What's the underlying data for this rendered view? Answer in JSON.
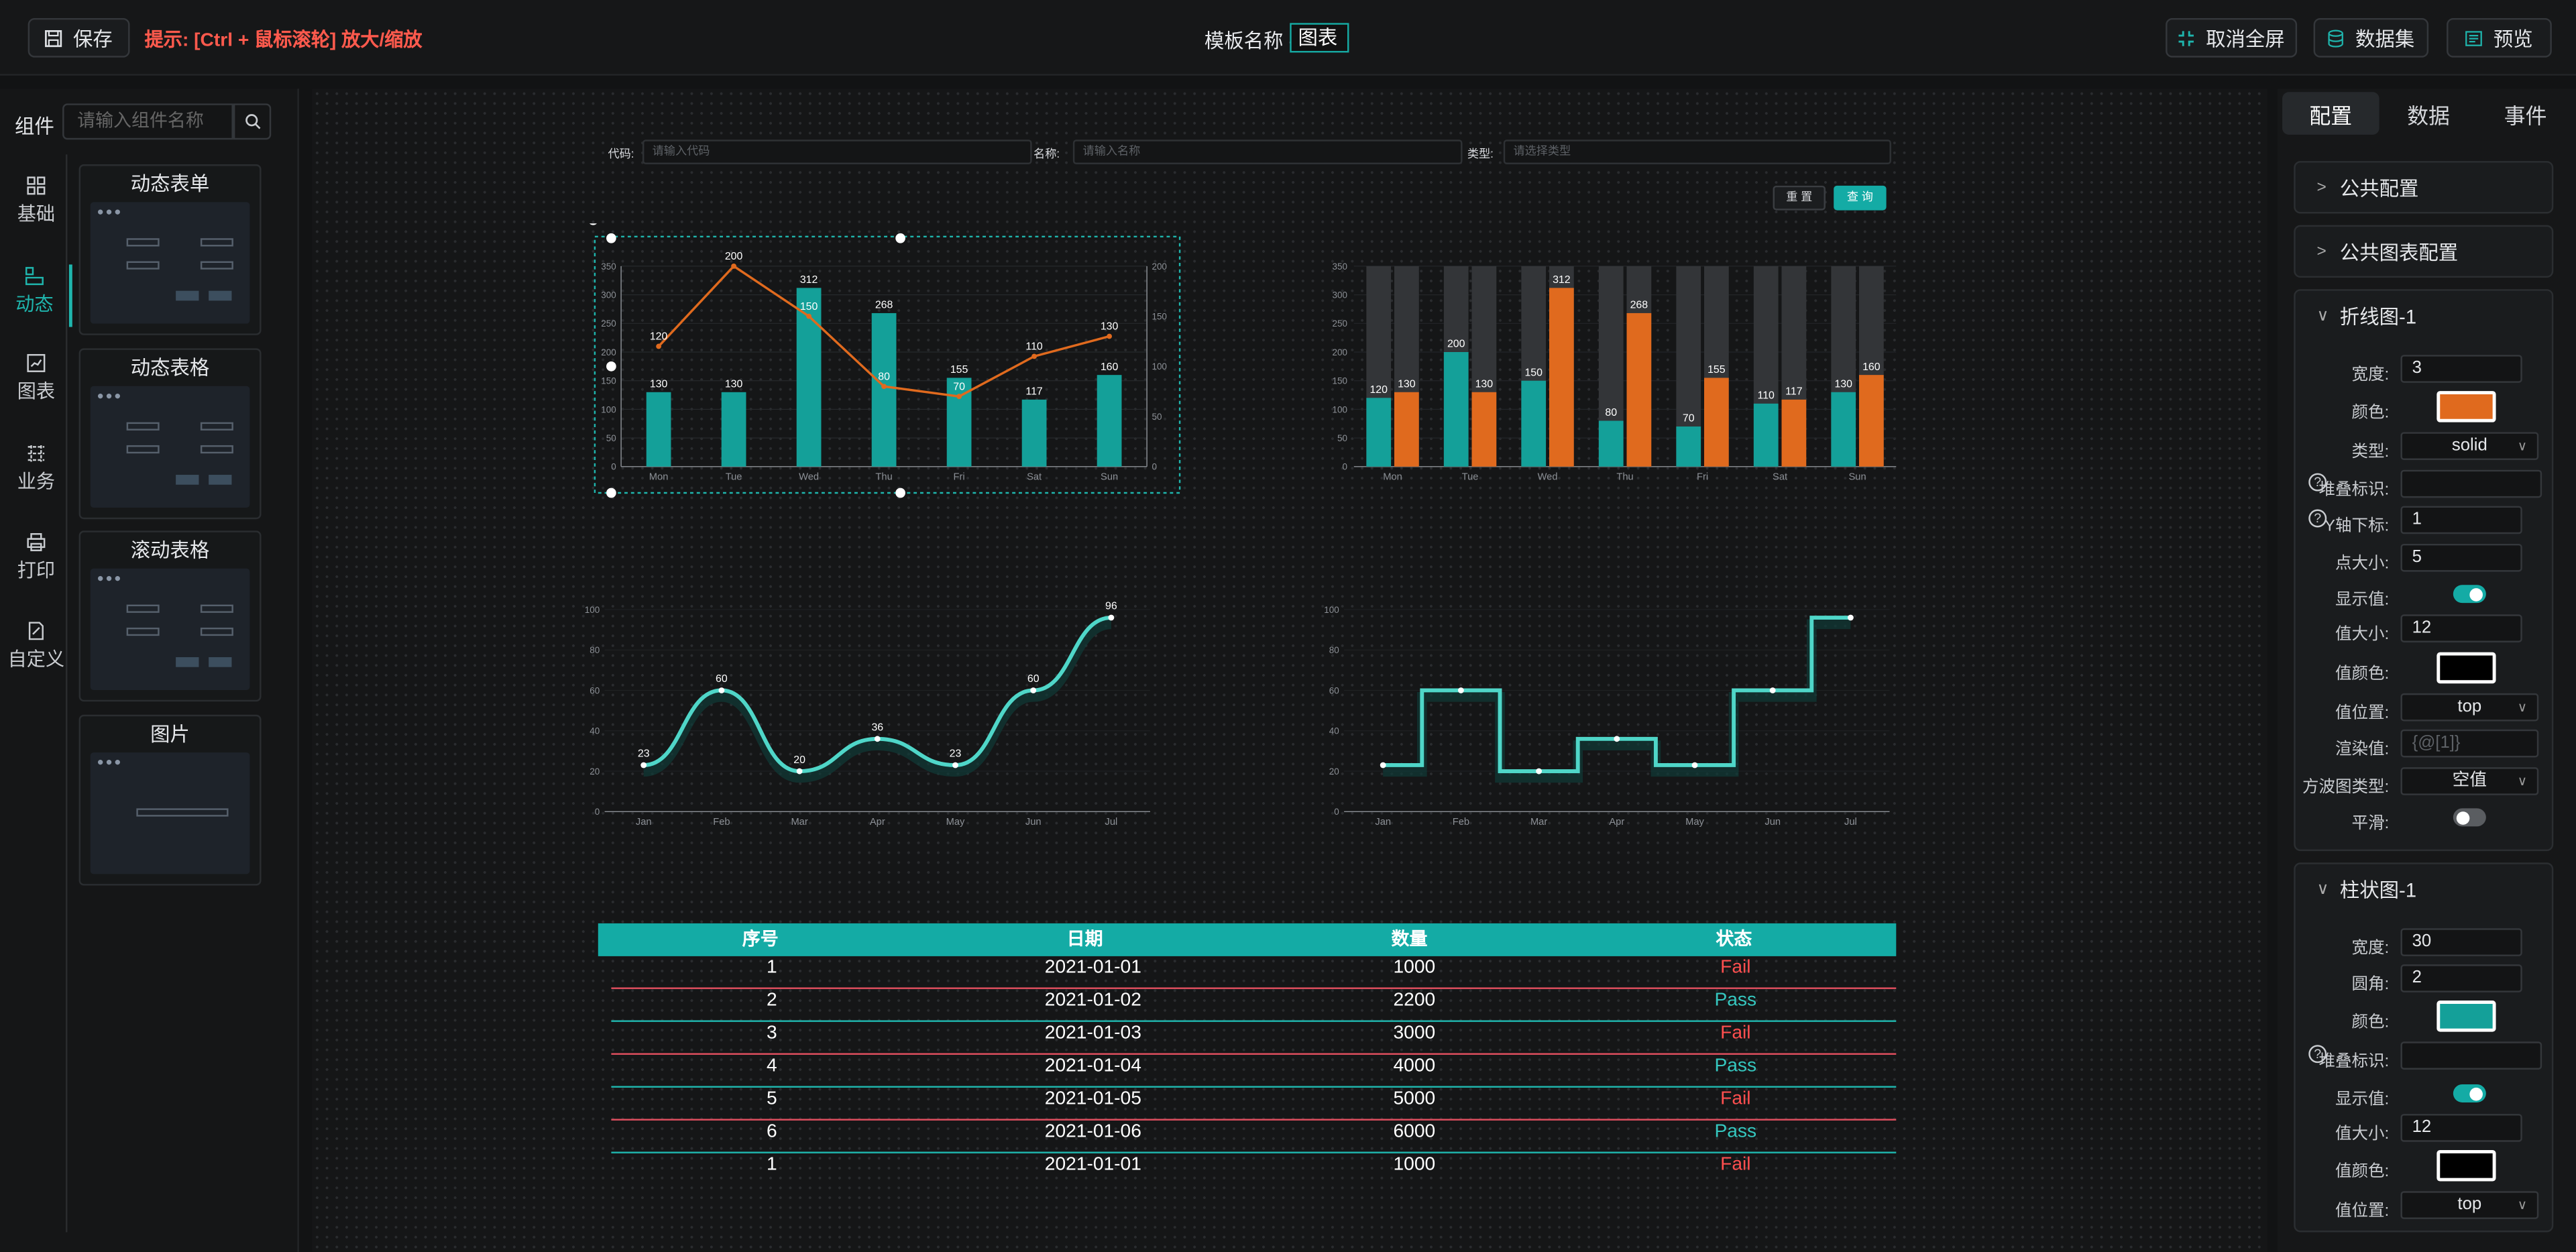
{
  "topbar": {
    "save": "保存",
    "hint": "提示: [Ctrl + 鼠标滚轮] 放大/缩放",
    "template_label": "模板名称 -",
    "template_name": "图表",
    "exit_full": "取消全屏",
    "dataset": "数据集",
    "preview": "预览"
  },
  "left": {
    "label": "组件",
    "search_placeholder": "请输入组件名称",
    "categories": [
      {
        "label": "基础",
        "icon": "grid-icon"
      },
      {
        "label": "动态",
        "icon": "dynamic-icon"
      },
      {
        "label": "图表",
        "icon": "chart-icon"
      },
      {
        "label": "业务",
        "icon": "business-icon"
      },
      {
        "label": "打印",
        "icon": "print-icon"
      },
      {
        "label": "自定义",
        "icon": "custom-icon"
      }
    ],
    "cards": [
      {
        "title": "动态表单"
      },
      {
        "title": "动态表格"
      },
      {
        "title": "滚动表格"
      },
      {
        "title": "图片"
      }
    ]
  },
  "filters": {
    "code_label": "代码:",
    "code_placeholder": "请输入代码",
    "name_label": "名称:",
    "name_placeholder": "请输入名称",
    "type_label": "类型:",
    "type_placeholder": "请选择类型",
    "reset": "重 置",
    "query": "查 询"
  },
  "chart_data": [
    {
      "type": "bar+line",
      "categories": [
        "Mon",
        "Tue",
        "Wed",
        "Thu",
        "Fri",
        "Sat",
        "Sun"
      ],
      "series": [
        {
          "type": "bar",
          "values": [
            130,
            130,
            312,
            268,
            155,
            117,
            160
          ]
        },
        {
          "type": "line",
          "values": [
            120,
            200,
            150,
            80,
            70,
            110,
            130
          ]
        }
      ],
      "y_ticks": [
        "0",
        "50",
        "100",
        "150",
        "200",
        "250",
        "300",
        "350"
      ],
      "y2_ticks": [
        "0",
        "50",
        "100",
        "150",
        "200"
      ],
      "ylim": [
        0,
        350
      ],
      "y2lim": [
        0,
        200
      ]
    },
    {
      "type": "bar",
      "categories": [
        "Mon",
        "Tue",
        "Wed",
        "Thu",
        "Fri",
        "Sat",
        "Sun"
      ],
      "series": [
        {
          "values": [
            120,
            200,
            150,
            80,
            70,
            110,
            130
          ]
        },
        {
          "values": [
            130,
            130,
            312,
            268,
            155,
            117,
            160
          ]
        }
      ],
      "y_ticks": [
        "0",
        "50",
        "100",
        "150",
        "200",
        "250",
        "300",
        "350"
      ],
      "ylim": [
        0,
        350
      ]
    },
    {
      "type": "line",
      "smooth": true,
      "categories": [
        "Jan",
        "Feb",
        "Mar",
        "Apr",
        "May",
        "Jun",
        "Jul"
      ],
      "values": [
        23,
        60,
        20,
        36,
        23,
        60,
        96
      ],
      "y_ticks": [
        "0",
        "20",
        "40",
        "60",
        "80",
        "100"
      ],
      "ylim": [
        0,
        100
      ]
    },
    {
      "type": "line",
      "step": true,
      "categories": [
        "Jan",
        "Feb",
        "Mar",
        "Apr",
        "May",
        "Jun",
        "Jul"
      ],
      "values": [
        23,
        60,
        20,
        36,
        23,
        60,
        96
      ],
      "y_ticks": [
        "0",
        "20",
        "40",
        "60",
        "80",
        "100"
      ],
      "ylim": [
        0,
        100
      ]
    }
  ],
  "table": {
    "headers": [
      "序号",
      "日期",
      "数量",
      "状态"
    ],
    "rows": [
      [
        "1",
        "2021-01-01",
        "1000",
        "Fail"
      ],
      [
        "2",
        "2021-01-02",
        "2200",
        "Pass"
      ],
      [
        "3",
        "2021-01-03",
        "3000",
        "Fail"
      ],
      [
        "4",
        "2021-01-04",
        "4000",
        "Pass"
      ],
      [
        "5",
        "2021-01-05",
        "5000",
        "Fail"
      ],
      [
        "6",
        "2021-01-06",
        "6000",
        "Pass"
      ],
      [
        "1",
        "2021-01-01",
        "1000",
        "Fail"
      ]
    ]
  },
  "right": {
    "tabs": [
      "配置",
      "数据",
      "事件"
    ],
    "sections": [
      "公共配置",
      "公共图表配置",
      "折线图-1",
      "柱状图-1"
    ],
    "line": {
      "width_label": "宽度:",
      "width": "3",
      "color_label": "颜色:",
      "color": "#e06a1e",
      "type_label": "类型:",
      "type": "solid",
      "stack_label": "堆叠标识:",
      "stack": "",
      "yaxis_label": "Y轴下标:",
      "yaxis": "1",
      "point_label": "点大小:",
      "point": "5",
      "show_label": "显示值:",
      "show_on": true,
      "vsize_label": "值大小:",
      "vsize": "12",
      "vcolor_label": "值颜色:",
      "vcolor": "#000000",
      "vpos_label": "值位置:",
      "vpos": "top",
      "render_label": "渲染值:",
      "render_placeholder": "{@[1]}",
      "wave_label": "方波图类型:",
      "wave": "空值",
      "smooth_label": "平滑:",
      "smooth_on": false
    },
    "bar": {
      "width_label": "宽度:",
      "width": "30",
      "radius_label": "圆角:",
      "radius": "2",
      "color_label": "颜色:",
      "color": "#14a099",
      "stack_label": "堆叠标识:",
      "stack": "",
      "show_label": "显示值:",
      "show_on": true,
      "vsize_label": "值大小:",
      "vsize": "12",
      "vcolor_label": "值颜色:",
      "vcolor": "#000000",
      "vpos_label": "值位置:",
      "vpos": "top"
    }
  },
  "colors": {
    "teal": "#14a099",
    "orange": "#e06a1e",
    "accent": "#1fb5ad",
    "line": "#4fd6c8"
  }
}
